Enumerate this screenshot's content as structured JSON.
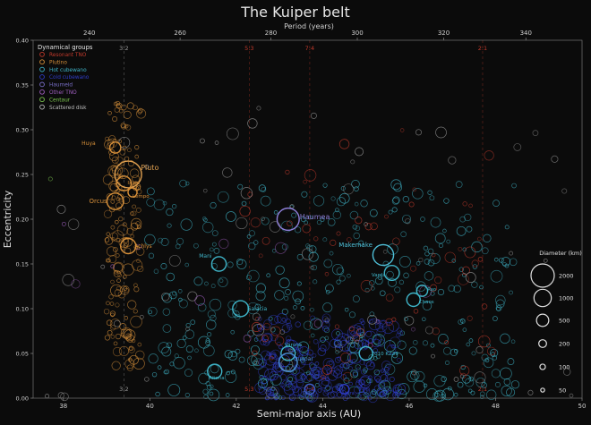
{
  "chart_data": {
    "type": "scatter",
    "title": "The Kuiper belt",
    "xlabel": "Semi-major axis (AU)",
    "ylabel": "Eccentricity",
    "top_axis_label": "Period (years)",
    "xlim": [
      37.3,
      50
    ],
    "ylim": [
      0,
      0.4
    ],
    "x_ticks": [
      "38",
      "40",
      "42",
      "44",
      "46",
      "48",
      "50"
    ],
    "y_ticks": [
      "0.00",
      "0.05",
      "0.10",
      "0.15",
      "0.20",
      "0.25",
      "0.30",
      "0.35",
      "0.40"
    ],
    "top_ticks": [
      {
        "label": "240",
        "a": 38.6
      },
      {
        "label": "260",
        "a": 40.7
      },
      {
        "label": "280",
        "a": 42.8
      },
      {
        "label": "300",
        "a": 44.8
      },
      {
        "label": "320",
        "a": 46.8
      },
      {
        "label": "340",
        "a": 48.7
      }
    ],
    "grid": false,
    "legend_position": "top-left",
    "legend": {
      "title": "Dynamical groups",
      "entries": [
        {
          "label": "Resonant TNO",
          "color": "#c0392b"
        },
        {
          "label": "Plutino",
          "color": "#d7903a"
        },
        {
          "label": "Hot cubewano",
          "color": "#3fb5c9"
        },
        {
          "label": "Cold cubewano",
          "color": "#2f3dc9"
        },
        {
          "label": "Haumeid",
          "color": "#7a6fc9"
        },
        {
          "label": "Other TNO",
          "color": "#a05fc0"
        },
        {
          "label": "Centaur",
          "color": "#7ec850"
        },
        {
          "label": "Scattered disk",
          "color": "#bdbdbd"
        }
      ]
    },
    "size_legend": {
      "title": "Diameter (km)",
      "values": [
        2000,
        1000,
        500,
        200,
        100,
        50
      ]
    },
    "resonances": [
      {
        "label": "3:2",
        "a": 39.4,
        "color": "#9a9a9a"
      },
      {
        "label": "5:3",
        "a": 42.3,
        "color": "#c0392b"
      },
      {
        "label": "7:4",
        "a": 43.7,
        "color": "#c0392b"
      },
      {
        "label": "2:1",
        "a": 47.7,
        "color": "#c0392b"
      }
    ],
    "named_objects": [
      {
        "name": "Pluto",
        "a": 39.5,
        "e": 0.25,
        "d": 2377,
        "color": "#e0a050"
      },
      {
        "name": "Huya",
        "a": 39.2,
        "e": 0.28,
        "d": 406,
        "color": "#d7903a"
      },
      {
        "name": "Ixion",
        "a": 39.4,
        "e": 0.24,
        "d": 710,
        "color": "#d7903a"
      },
      {
        "name": "Lempo",
        "a": 39.6,
        "e": 0.23,
        "d": 272,
        "color": "#d7903a"
      },
      {
        "name": "Orcus",
        "a": 39.2,
        "e": 0.22,
        "d": 910,
        "color": "#d7903a"
      },
      {
        "name": "Achlys",
        "a": 39.5,
        "e": 0.17,
        "d": 772,
        "color": "#d7903a"
      },
      {
        "name": "Haumea",
        "a": 43.2,
        "e": 0.2,
        "d": 1632,
        "color": "#8e7fd9"
      },
      {
        "name": "Makemake",
        "a": 45.4,
        "e": 0.16,
        "d": 1430,
        "color": "#4fc0d9"
      },
      {
        "name": "Mani",
        "a": 41.6,
        "e": 0.15,
        "d": 700,
        "color": "#3fb5c9"
      },
      {
        "name": "Varda",
        "a": 45.6,
        "e": 0.14,
        "d": 740,
        "color": "#3fb5c9"
      },
      {
        "name": "Salacia",
        "a": 42.1,
        "e": 0.1,
        "d": 846,
        "color": "#3fb5c9"
      },
      {
        "name": "Chaos",
        "a": 46.1,
        "e": 0.11,
        "d": 600,
        "color": "#3fb5c9"
      },
      {
        "name": "Varuna",
        "a": 43.2,
        "e": 0.05,
        "d": 668,
        "color": "#3fb5c9"
      },
      {
        "name": "2010 KZ39",
        "a": 45.0,
        "e": 0.05,
        "d": 600,
        "color": "#3fb5c9"
      },
      {
        "name": "Quaoar",
        "a": 43.2,
        "e": 0.04,
        "d": 1110,
        "color": "#4a8fd9"
      },
      {
        "name": "Ritona",
        "a": 41.5,
        "e": 0.03,
        "d": 679,
        "color": "#3fb5c9"
      },
      {
        "name": "Sila",
        "a": 43.7,
        "e": 0.01,
        "d": 343,
        "color": "#3f5fc9"
      },
      {
        "name": "Altjira",
        "a": 44.5,
        "e": 0.01,
        "d": 300,
        "color": "#2f3dc9"
      },
      {
        "name": "Rao",
        "a": 46.3,
        "e": 0.12,
        "d": 400,
        "color": "#3fb5c9"
      }
    ],
    "group_scatter": [
      {
        "group": "Plutino",
        "color": "#d7903a",
        "count": 170,
        "a": [
          39.0,
          39.8
        ],
        "e": [
          0.03,
          0.33
        ]
      },
      {
        "group": "Hot cubewano",
        "color": "#3fb5c9",
        "count": 420,
        "a": [
          40.0,
          48.5
        ],
        "e": [
          0.0,
          0.24
        ]
      },
      {
        "group": "Cold cubewano",
        "color": "#2f3dc9",
        "count": 260,
        "a": [
          42.5,
          45.8
        ],
        "e": [
          0.0,
          0.09
        ]
      },
      {
        "group": "Resonant TNO",
        "color": "#c0392b",
        "count": 70,
        "a": [
          42.0,
          48.0
        ],
        "e": [
          0.02,
          0.3
        ]
      },
      {
        "group": "Scattered disk",
        "color": "#9a9a9a",
        "count": 70,
        "a": [
          37.6,
          49.9
        ],
        "e": [
          0.0,
          0.33
        ]
      },
      {
        "group": "Other TNO",
        "color": "#a05fc0",
        "count": 12,
        "a": [
          38.0,
          48.0
        ],
        "e": [
          0.04,
          0.2
        ]
      },
      {
        "group": "Centaur",
        "color": "#7ec850",
        "count": 1,
        "a": [
          37.7,
          37.7
        ],
        "e": [
          0.245,
          0.245
        ]
      }
    ]
  }
}
